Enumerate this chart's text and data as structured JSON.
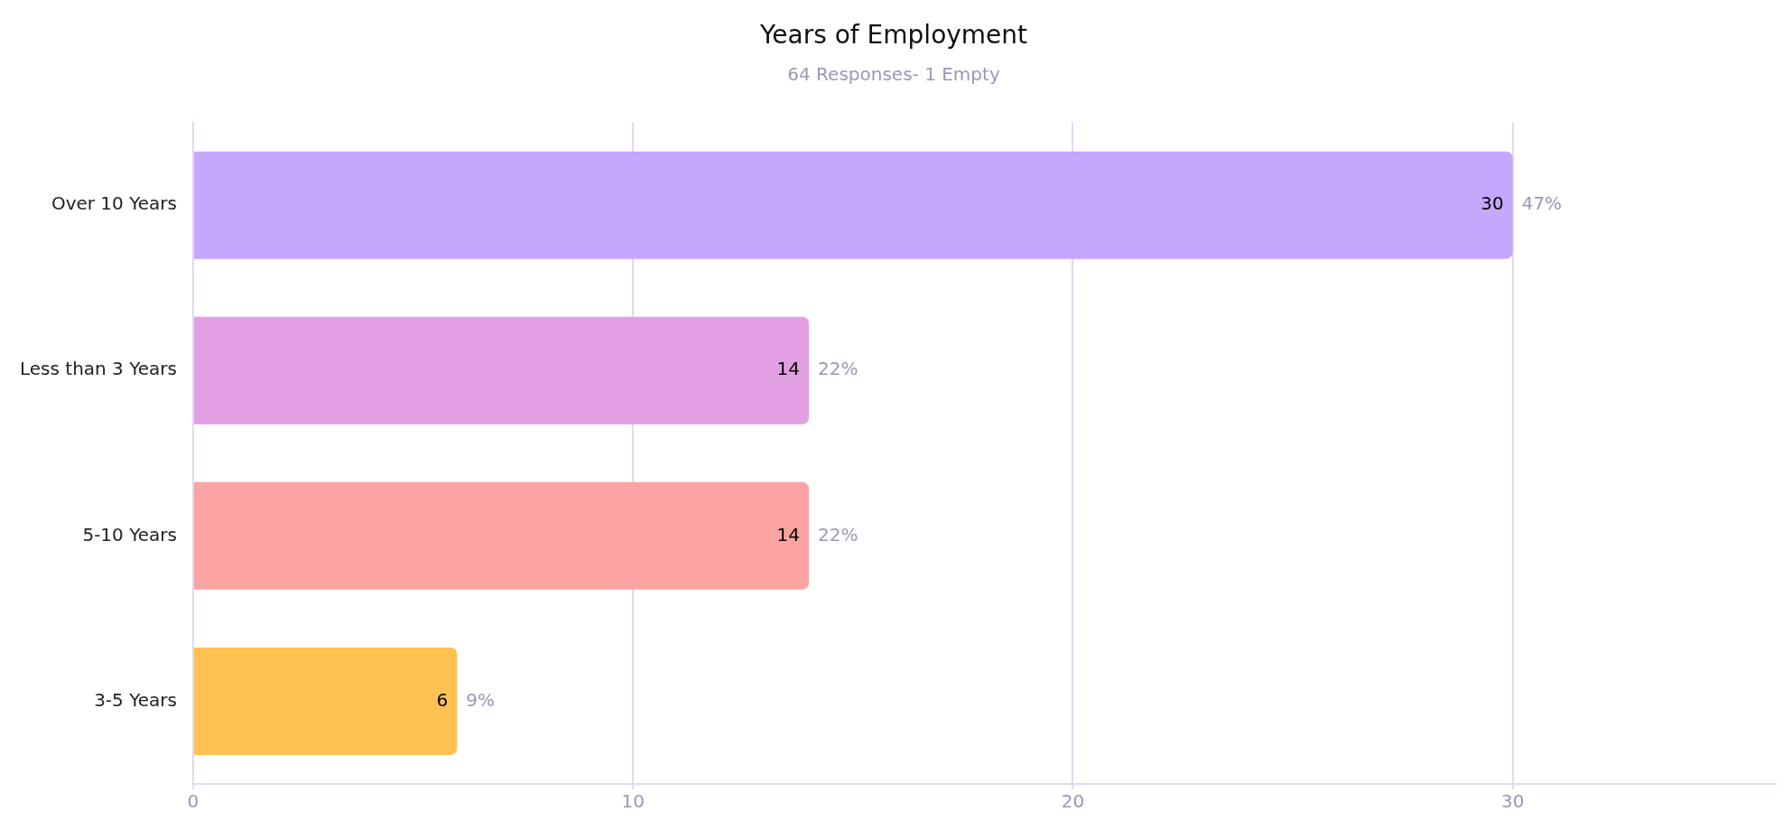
{
  "chart_data": {
    "type": "bar",
    "orientation": "horizontal",
    "title": "Years of Employment",
    "subtitle": "64 Responses- 1 Empty",
    "categories": [
      "Over 10 Years",
      "Less than 3 Years",
      "5-10 Years",
      "3-5 Years"
    ],
    "values": [
      30,
      14,
      14,
      6
    ],
    "colors": [
      "#c5a8fd",
      "#e2a0e3",
      "#fba3a3",
      "#ffc152"
    ],
    "value_labels": [
      "30",
      "14",
      "14",
      "6"
    ],
    "annotations": [
      {
        "text": "47%",
        "x": 30,
        "y": "Over 10 Years"
      },
      {
        "text": "22%",
        "x": 14,
        "y": "Less than 3 Years"
      },
      {
        "text": "22%",
        "x": 14,
        "y": "5-10 Years"
      },
      {
        "text": "9%",
        "x": 6,
        "y": "3-5 Years"
      }
    ],
    "xlim": [
      0,
      36
    ],
    "xticks": [
      0,
      10,
      20,
      30
    ],
    "grid": "x",
    "legend": false
  }
}
